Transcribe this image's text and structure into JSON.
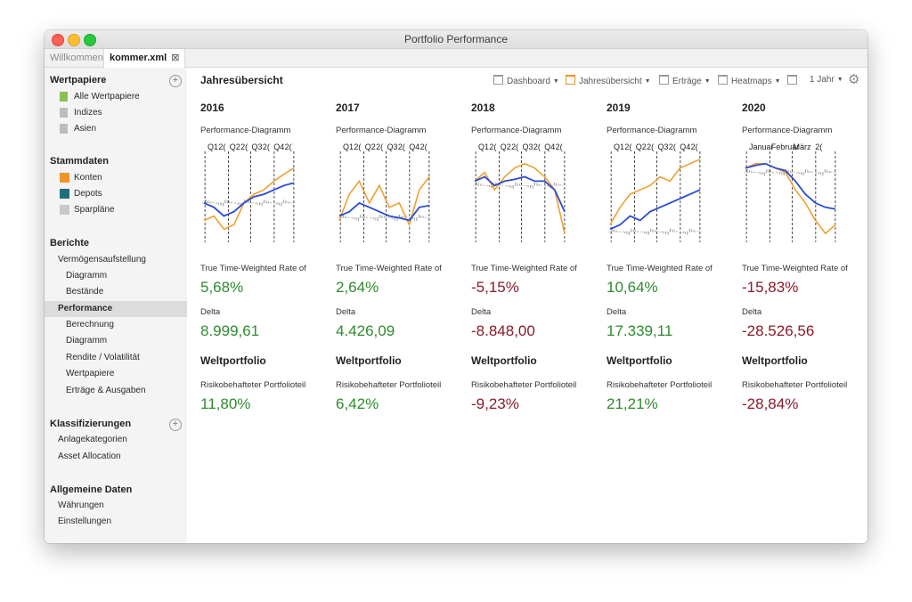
{
  "window": {
    "title": "Portfolio Performance"
  },
  "tabs": [
    {
      "label": "Willkommen"
    },
    {
      "label": "kommer.xml",
      "close_glyph": "⊠"
    }
  ],
  "sidebar": {
    "wertpapiere": {
      "title": "Wertpapiere",
      "items": [
        {
          "label": "Alle Wertpapiere",
          "color": "#8cc152"
        },
        {
          "label": "Indizes",
          "color": "#bdbdbd"
        },
        {
          "label": "Asien",
          "color": "#bdbdbd"
        }
      ]
    },
    "stammdaten": {
      "title": "Stammdaten",
      "items": [
        {
          "label": "Konten",
          "color": "#f0932b"
        },
        {
          "label": "Depots",
          "color": "#1f6f7a"
        },
        {
          "label": "Sparpläne",
          "color": "#c8c8c8"
        }
      ]
    },
    "berichte": {
      "title": "Berichte",
      "items": [
        {
          "label": "Vermögensaufstellung"
        },
        {
          "label": "Diagramm"
        },
        {
          "label": "Bestände"
        },
        {
          "label": "Performance"
        },
        {
          "label": "Berechnung"
        },
        {
          "label": "Diagramm"
        },
        {
          "label": "Rendite / Volatilität"
        },
        {
          "label": "Wertpapiere"
        },
        {
          "label": "Erträge & Ausgaben"
        }
      ]
    },
    "klassifizierungen": {
      "title": "Klassifizierungen",
      "items": [
        {
          "label": "Anlagekategorien"
        },
        {
          "label": "Asset Allocation"
        }
      ]
    },
    "allgemein": {
      "title": "Allgemeine Daten",
      "items": [
        {
          "label": "Währungen"
        },
        {
          "label": "Einstellungen"
        }
      ]
    }
  },
  "main": {
    "title": "Jahresübersicht",
    "toolbar": {
      "dashboard": "Dashboard",
      "jahresuebersicht": "Jahresübersicht",
      "ertraege": "Erträge",
      "heatmaps": "Heatmaps",
      "period": "1 Jahr"
    },
    "labels": {
      "perf_chart": "Performance-Diagramm",
      "ttwror": "True Time-Weighted Rate of",
      "delta": "Delta",
      "weltportfolio": "Weltportfolio",
      "risk": "Risikobehafteter Portfolioteil"
    },
    "colors": {
      "positive": "#2e8b2e",
      "negative": "#8b1a2b",
      "portfolio": "#2a4bd7",
      "benchmark": "#f0a030",
      "delta": "#9a9a9a"
    }
  },
  "columns": [
    {
      "year": "2016",
      "ttwror": "5,68%",
      "delta": "8.999,61",
      "risk": "11,80%",
      "ttwror_sign": "pos",
      "delta_sign": "pos",
      "risk_sign": "pos",
      "markers": [
        "Q1",
        "2(",
        "Q2",
        "2(",
        "Q3",
        "2(",
        "Q4",
        "2("
      ]
    },
    {
      "year": "2017",
      "ttwror": "2,64%",
      "delta": "4.426,09",
      "risk": "6,42%",
      "ttwror_sign": "pos",
      "delta_sign": "pos",
      "risk_sign": "pos",
      "markers": [
        "Q1",
        "2(",
        "Q2",
        "2(",
        "Q3",
        "2(",
        "Q4",
        "2("
      ]
    },
    {
      "year": "2018",
      "ttwror": "-5,15%",
      "delta": "-8.848,00",
      "risk": "-9,23%",
      "ttwror_sign": "neg",
      "delta_sign": "neg",
      "risk_sign": "neg",
      "markers": [
        "Q1",
        "2(",
        "Q2",
        "2(",
        "Q3",
        "2(",
        "Q4",
        "2("
      ]
    },
    {
      "year": "2019",
      "ttwror": "10,64%",
      "delta": "17.339,11",
      "risk": "21,21%",
      "ttwror_sign": "pos",
      "delta_sign": "pos",
      "risk_sign": "pos",
      "markers": [
        "Q1",
        "2(",
        "Q2",
        "2(",
        "Q3",
        "2(",
        "Q4",
        "2("
      ]
    },
    {
      "year": "2020",
      "ttwror": "-15,83%",
      "delta": "-28.526,56",
      "risk": "-28,84%",
      "ttwror_sign": "neg",
      "delta_sign": "neg",
      "risk_sign": "neg",
      "markers": [
        "Januar",
        "Februar",
        "März",
        "2("
      ]
    }
  ]
}
